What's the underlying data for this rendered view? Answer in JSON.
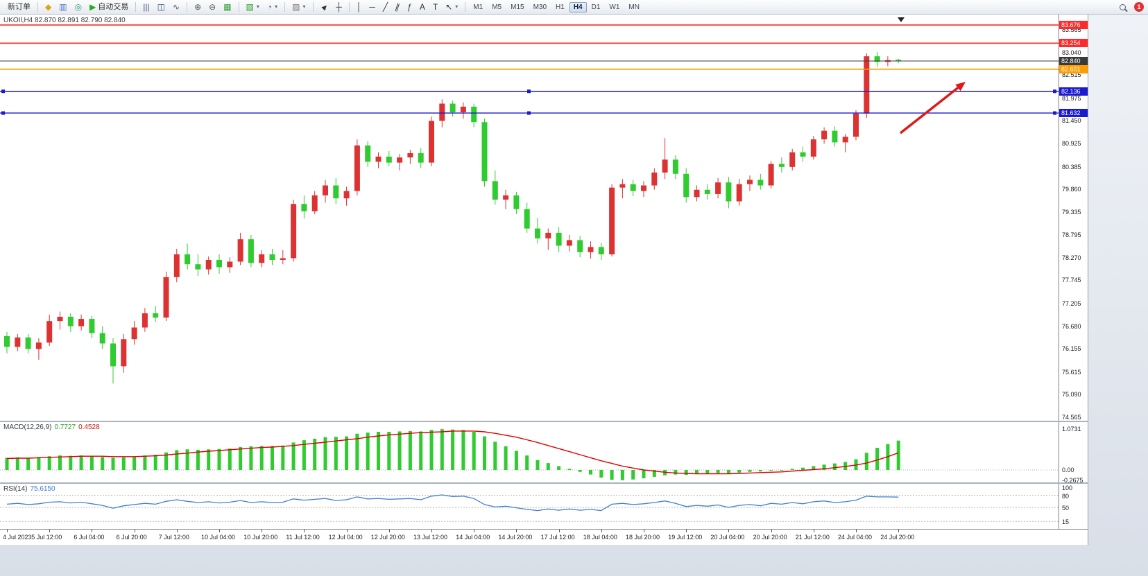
{
  "toolbar": {
    "timeframes": [
      "M1",
      "M5",
      "M15",
      "M30",
      "H1",
      "H4",
      "D1",
      "W1",
      "MN"
    ],
    "active_timeframe": "H4",
    "notification_count": "1",
    "items": [
      {
        "type": "button",
        "name": "new-order-button",
        "label": "新订单"
      },
      {
        "type": "sep"
      },
      {
        "type": "button",
        "name": "charts-profile-button",
        "icon": "chart-profile-icon",
        "glyph": "◆",
        "color": "#d9a514"
      },
      {
        "type": "button",
        "name": "market-watch-button",
        "icon": "market-watch-icon",
        "glyph": "▥",
        "color": "#4f74c9"
      },
      {
        "type": "button",
        "name": "navigator-button",
        "icon": "navigator-icon",
        "glyph": "◎",
        "color": "#2f9e7a"
      },
      {
        "type": "button",
        "name": "auto-trading-button",
        "icon": "play-icon",
        "glyph": "▶",
        "color": "#22ad22",
        "label": "自动交易"
      },
      {
        "type": "sep"
      },
      {
        "type": "button",
        "name": "bar-chart-mode-button",
        "icon": "bar-chart-icon",
        "glyph": "|||",
        "color": "#3c5a78"
      },
      {
        "type": "button",
        "name": "candle-mode-button",
        "icon": "candlestick-icon",
        "glyph": "◫",
        "color": "#3c5a78"
      },
      {
        "type": "button",
        "name": "line-mode-button",
        "icon": "line-chart-icon",
        "glyph": "∿",
        "color": "#3c5a78"
      },
      {
        "type": "sep"
      },
      {
        "type": "button",
        "name": "zoom-in-button",
        "icon": "zoom-in-icon",
        "glyph": "⊕",
        "color": "#555555"
      },
      {
        "type": "button",
        "name": "zoom-out-button",
        "icon": "zoom-out-icon",
        "glyph": "⊖",
        "color": "#555555"
      },
      {
        "type": "button",
        "name": "tile-windows-button",
        "icon": "tile-windows-icon",
        "glyph": "▦",
        "color": "#2f9e2f"
      },
      {
        "type": "sep"
      },
      {
        "type": "button",
        "name": "new-chart-button",
        "icon": "new-chart-icon",
        "glyph": "▧",
        "color": "#2f9e2f",
        "caret": true
      },
      {
        "type": "button",
        "name": "periods-button",
        "icon": "clock-icon",
        "glyph": "◔",
        "color": "#3b6fc4",
        "caret": true
      },
      {
        "type": "sep"
      },
      {
        "type": "button",
        "name": "indicators-button",
        "icon": "indicators-icon",
        "glyph": "▨",
        "color": "#777777",
        "caret": true
      },
      {
        "type": "sep"
      },
      {
        "type": "button",
        "name": "cursor-button",
        "icon": "cursor-icon",
        "glyph": "►",
        "color": "#333333",
        "cls": "rot-45"
      },
      {
        "type": "button",
        "name": "crosshair-button",
        "icon": "crosshair-icon",
        "glyph": "┼",
        "color": "#333333"
      },
      {
        "type": "sep"
      },
      {
        "type": "button",
        "name": "vline-tool-button",
        "icon": "vertical-line-icon",
        "glyph": "│",
        "color": "#333333"
      },
      {
        "type": "button",
        "name": "hline-tool-button",
        "icon": "horizontal-line-icon",
        "glyph": "─",
        "color": "#333333"
      },
      {
        "type": "button",
        "name": "trendline-tool-button",
        "icon": "trendline-icon",
        "glyph": "╱",
        "color": "#333333"
      },
      {
        "type": "button",
        "name": "channel-tool-button",
        "icon": "channel-icon",
        "glyph": "∥",
        "color": "#333333",
        "cls": "rot20"
      },
      {
        "type": "button",
        "name": "fibonacci-tool-button",
        "icon": "fibonacci-icon",
        "glyph": "ƒ",
        "color": "#333333"
      },
      {
        "type": "button",
        "name": "text-tool-button",
        "icon": "text-icon",
        "glyph": "A",
        "color": "#333333"
      },
      {
        "type": "button",
        "name": "label-tool-button",
        "icon": "label-icon",
        "glyph": "T",
        "color": "#333333"
      },
      {
        "type": "button",
        "name": "arrows-tool-button",
        "icon": "arrow-tool-icon",
        "glyph": "↖",
        "color": "#333333",
        "caret": true
      },
      {
        "type": "sep"
      },
      {
        "type": "timeframes"
      },
      {
        "type": "spacer"
      },
      {
        "type": "button",
        "name": "search-button",
        "icon": "search-icon",
        "cssicon": "mag"
      },
      {
        "type": "badge",
        "name": "notification-badge"
      }
    ]
  },
  "chart": {
    "title": "UKOIl,H4",
    "ohlc": "82.870 82.891 82.790 82.840",
    "current_price": "82.840",
    "price_tag_color": "#3a3a3a"
  },
  "chart_data": {
    "type": "candlestick",
    "symbol": "UKOIl",
    "timeframe": "H4",
    "colors": {
      "up": "#dd3232",
      "down": "#2fcc2f"
    },
    "price_axis_ticks": [
      "83.565",
      "83.040",
      "82.515",
      "81.975",
      "81.450",
      "80.925",
      "80.385",
      "79.860",
      "79.335",
      "78.795",
      "78.270",
      "77.745",
      "77.205",
      "76.680",
      "76.155",
      "75.615",
      "75.090",
      "74.565"
    ],
    "levels": [
      {
        "price": 83.676,
        "label": "83.676",
        "color": "#ff2a2a",
        "width": 1.6
      },
      {
        "price": 83.254,
        "label": "83.254",
        "color": "#ff2a2a",
        "width": 1.6
      },
      {
        "price": 82.651,
        "label": "82.651",
        "color": "#ff9c00",
        "width": 1.6
      },
      {
        "price": 82.136,
        "label": "82.136",
        "color": "#1a1ad0",
        "width": 1.4,
        "handles": true
      },
      {
        "price": 81.632,
        "label": "81.632",
        "color": "#1a1ad0",
        "width": 1.4,
        "handles": true
      }
    ],
    "candles": [
      [
        76.45,
        76.55,
        76.05,
        76.2
      ],
      [
        76.2,
        76.5,
        76.1,
        76.42
      ],
      [
        76.42,
        76.5,
        76.05,
        76.15
      ],
      [
        76.15,
        76.4,
        75.9,
        76.3
      ],
      [
        76.3,
        76.95,
        76.22,
        76.8
      ],
      [
        76.8,
        77.02,
        76.6,
        76.9
      ],
      [
        76.9,
        76.98,
        76.55,
        76.68
      ],
      [
        76.68,
        76.95,
        76.58,
        76.85
      ],
      [
        76.85,
        76.92,
        76.4,
        76.52
      ],
      [
        76.52,
        76.68,
        76.15,
        76.28
      ],
      [
        76.28,
        76.4,
        75.35,
        75.75
      ],
      [
        75.75,
        76.5,
        75.6,
        76.38
      ],
      [
        76.38,
        76.8,
        76.25,
        76.65
      ],
      [
        76.65,
        77.1,
        76.55,
        76.98
      ],
      [
        76.98,
        77.15,
        76.78,
        76.88
      ],
      [
        76.88,
        77.95,
        76.8,
        77.82
      ],
      [
        77.82,
        78.48,
        77.7,
        78.35
      ],
      [
        78.35,
        78.6,
        78.0,
        78.12
      ],
      [
        78.12,
        78.35,
        77.85,
        78.0
      ],
      [
        78.0,
        78.3,
        77.88,
        78.22
      ],
      [
        78.22,
        78.35,
        77.9,
        78.05
      ],
      [
        78.05,
        78.28,
        77.92,
        78.18
      ],
      [
        78.18,
        78.85,
        78.1,
        78.7
      ],
      [
        78.7,
        78.8,
        78.05,
        78.15
      ],
      [
        78.15,
        78.45,
        78.05,
        78.35
      ],
      [
        78.35,
        78.48,
        78.1,
        78.22
      ],
      [
        78.22,
        78.45,
        78.12,
        78.26
      ],
      [
        78.26,
        79.62,
        78.18,
        79.52
      ],
      [
        79.52,
        79.72,
        79.18,
        79.35
      ],
      [
        79.35,
        79.82,
        79.28,
        79.72
      ],
      [
        79.72,
        80.08,
        79.55,
        79.95
      ],
      [
        79.95,
        80.12,
        79.52,
        79.65
      ],
      [
        79.65,
        79.92,
        79.48,
        79.82
      ],
      [
        79.82,
        81.02,
        79.72,
        80.88
      ],
      [
        80.88,
        80.98,
        80.38,
        80.5
      ],
      [
        80.5,
        80.72,
        80.35,
        80.62
      ],
      [
        80.62,
        80.75,
        80.4,
        80.48
      ],
      [
        80.48,
        80.68,
        80.3,
        80.6
      ],
      [
        80.6,
        80.78,
        80.45,
        80.7
      ],
      [
        80.7,
        80.82,
        80.35,
        80.48
      ],
      [
        80.48,
        81.55,
        80.4,
        81.45
      ],
      [
        81.45,
        81.95,
        81.3,
        81.85
      ],
      [
        81.85,
        81.92,
        81.55,
        81.65
      ],
      [
        81.65,
        81.88,
        81.5,
        81.78
      ],
      [
        81.78,
        81.85,
        81.3,
        81.42
      ],
      [
        81.42,
        81.5,
        79.92,
        80.05
      ],
      [
        80.05,
        80.3,
        79.5,
        79.62
      ],
      [
        79.62,
        79.85,
        79.4,
        79.72
      ],
      [
        79.72,
        79.8,
        79.28,
        79.4
      ],
      [
        79.4,
        79.55,
        78.85,
        78.95
      ],
      [
        78.95,
        79.2,
        78.6,
        78.72
      ],
      [
        78.72,
        78.95,
        78.45,
        78.85
      ],
      [
        78.85,
        78.98,
        78.4,
        78.55
      ],
      [
        78.55,
        78.8,
        78.42,
        78.68
      ],
      [
        78.68,
        78.78,
        78.28,
        78.4
      ],
      [
        78.4,
        78.65,
        78.25,
        78.52
      ],
      [
        78.52,
        78.62,
        78.22,
        78.35
      ],
      [
        78.35,
        79.98,
        78.3,
        79.9
      ],
      [
        79.9,
        80.1,
        79.65,
        79.98
      ],
      [
        79.98,
        80.08,
        79.7,
        79.82
      ],
      [
        79.82,
        80.05,
        79.68,
        79.95
      ],
      [
        79.95,
        80.35,
        79.85,
        80.25
      ],
      [
        80.25,
        81.05,
        80.1,
        80.55
      ],
      [
        80.55,
        80.65,
        80.1,
        80.22
      ],
      [
        80.22,
        80.35,
        79.55,
        79.68
      ],
      [
        79.68,
        79.95,
        79.58,
        79.85
      ],
      [
        79.85,
        79.98,
        79.62,
        79.75
      ],
      [
        79.75,
        80.12,
        79.65,
        80.02
      ],
      [
        80.02,
        80.15,
        79.42,
        79.58
      ],
      [
        79.58,
        80.1,
        79.48,
        79.98
      ],
      [
        79.98,
        80.18,
        79.82,
        80.08
      ],
      [
        80.08,
        80.22,
        79.85,
        79.95
      ],
      [
        79.95,
        80.52,
        79.88,
        80.45
      ],
      [
        80.45,
        80.6,
        80.25,
        80.38
      ],
      [
        80.38,
        80.8,
        80.3,
        80.72
      ],
      [
        80.72,
        80.85,
        80.5,
        80.62
      ],
      [
        80.62,
        81.1,
        80.55,
        81.02
      ],
      [
        81.02,
        81.3,
        80.92,
        81.22
      ],
      [
        81.22,
        81.32,
        80.85,
        80.95
      ],
      [
        80.95,
        81.15,
        80.72,
        81.08
      ],
      [
        81.08,
        81.7,
        81.0,
        81.62
      ],
      [
        81.62,
        83.02,
        81.52,
        82.95
      ],
      [
        82.95,
        83.05,
        82.7,
        82.82
      ],
      [
        82.82,
        82.95,
        82.72,
        82.86
      ],
      [
        82.87,
        82.89,
        82.79,
        82.84
      ]
    ],
    "time_labels": [
      [
        0,
        "4 Jul 2023"
      ],
      [
        4,
        "5 Jul 12:00"
      ],
      [
        8,
        "6 Jul 04:00"
      ],
      [
        12,
        "6 Jul 20:00"
      ],
      [
        16,
        "7 Jul 12:00"
      ],
      [
        20,
        "10 Jul 04:00"
      ],
      [
        24,
        "10 Jul 20:00"
      ],
      [
        28,
        "11 Jul 12:00"
      ],
      [
        32,
        "12 Jul 04:00"
      ],
      [
        36,
        "12 Jul 20:00"
      ],
      [
        40,
        "13 Jul 12:00"
      ],
      [
        44,
        "14 Jul 04:00"
      ],
      [
        48,
        "14 Jul 20:00"
      ],
      [
        52,
        "17 Jul 12:00"
      ],
      [
        56,
        "18 Jul 04:00"
      ],
      [
        60,
        "18 Jul 20:00"
      ],
      [
        64,
        "19 Jul 12:00"
      ],
      [
        68,
        "20 Jul 04:00"
      ],
      [
        72,
        "20 Jul 20:00"
      ],
      [
        76,
        "21 Jul 12:00"
      ],
      [
        80,
        "24 Jul 04:00"
      ],
      [
        84,
        "24 Jul 20:00"
      ]
    ],
    "arrow": {
      "color": "#e01818",
      "from": [
        1298,
        171
      ],
      "to": [
        1392,
        97
      ]
    }
  },
  "macd": {
    "name": "MACD(12,26,9)",
    "main_value": "0.7727",
    "signal_value": "0.4528",
    "axis_ticks": [
      "1.0731",
      "0.00",
      "-0.2675"
    ],
    "colors": {
      "histogram": "#2fcc2f",
      "signal": "#e00000"
    },
    "histogram": [
      0.32,
      0.33,
      0.32,
      0.34,
      0.36,
      0.38,
      0.37,
      0.38,
      0.36,
      0.34,
      0.32,
      0.33,
      0.35,
      0.38,
      0.4,
      0.46,
      0.52,
      0.54,
      0.53,
      0.54,
      0.55,
      0.56,
      0.6,
      0.62,
      0.63,
      0.63,
      0.64,
      0.72,
      0.78,
      0.82,
      0.86,
      0.87,
      0.88,
      0.95,
      0.98,
      1.0,
      1.0,
      1.01,
      1.02,
      1.01,
      1.05,
      1.07,
      1.06,
      1.05,
      1.0,
      0.88,
      0.74,
      0.62,
      0.5,
      0.38,
      0.26,
      0.18,
      0.1,
      0.03,
      -0.05,
      -0.12,
      -0.2,
      -0.26,
      -0.27,
      -0.25,
      -0.22,
      -0.18,
      -0.14,
      -0.12,
      -0.13,
      -0.11,
      -0.1,
      -0.08,
      -0.09,
      -0.07,
      -0.05,
      -0.04,
      -0.02,
      0.0,
      0.03,
      0.06,
      0.1,
      0.14,
      0.17,
      0.21,
      0.28,
      0.45,
      0.58,
      0.68,
      0.77
    ],
    "signal": [
      0.3,
      0.31,
      0.31,
      0.32,
      0.33,
      0.34,
      0.35,
      0.36,
      0.36,
      0.36,
      0.35,
      0.35,
      0.35,
      0.36,
      0.37,
      0.39,
      0.42,
      0.44,
      0.47,
      0.49,
      0.51,
      0.53,
      0.55,
      0.57,
      0.59,
      0.6,
      0.62,
      0.64,
      0.67,
      0.7,
      0.73,
      0.76,
      0.79,
      0.82,
      0.86,
      0.89,
      0.92,
      0.94,
      0.96,
      0.98,
      0.99,
      1.0,
      1.02,
      1.02,
      1.02,
      1.0,
      0.96,
      0.91,
      0.86,
      0.79,
      0.72,
      0.64,
      0.56,
      0.48,
      0.4,
      0.32,
      0.24,
      0.17,
      0.1,
      0.05,
      0.0,
      -0.03,
      -0.06,
      -0.08,
      -0.09,
      -0.1,
      -0.1,
      -0.1,
      -0.1,
      -0.09,
      -0.08,
      -0.07,
      -0.06,
      -0.05,
      -0.03,
      -0.01,
      0.01,
      0.03,
      0.06,
      0.09,
      0.13,
      0.18,
      0.26,
      0.35,
      0.45
    ]
  },
  "rsi": {
    "name": "RSI(14)",
    "value": "75.6150",
    "axis_ticks": [
      "100",
      "80",
      "50",
      "15"
    ],
    "levels": [
      80,
      50,
      15
    ],
    "color": "#3d7fd4",
    "values": [
      58,
      60,
      57,
      59,
      63,
      64,
      61,
      63,
      59,
      55,
      48,
      54,
      57,
      60,
      58,
      65,
      69,
      65,
      62,
      64,
      61,
      63,
      67,
      62,
      64,
      62,
      63,
      71,
      68,
      70,
      72,
      67,
      69,
      76,
      71,
      72,
      70,
      71,
      72,
      69,
      78,
      81,
      77,
      78,
      72,
      57,
      51,
      53,
      49,
      45,
      42,
      46,
      43,
      46,
      43,
      45,
      42,
      58,
      60,
      57,
      59,
      62,
      66,
      60,
      52,
      55,
      53,
      56,
      50,
      55,
      57,
      54,
      60,
      58,
      62,
      59,
      64,
      66,
      62,
      64,
      68,
      78,
      76,
      76,
      75.6
    ]
  }
}
